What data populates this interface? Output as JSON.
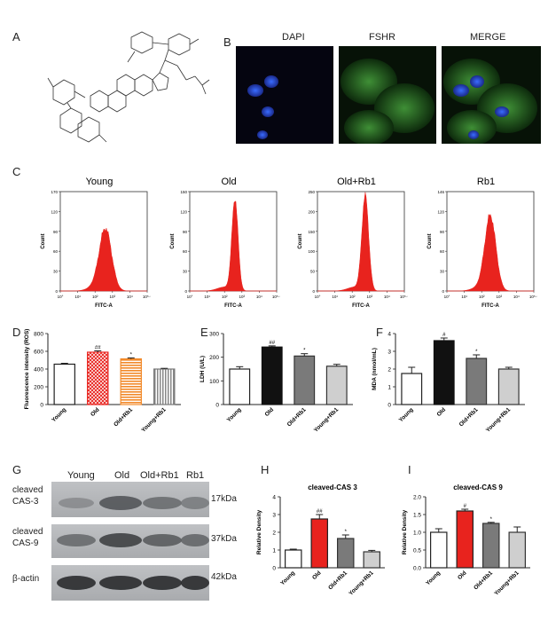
{
  "panels": {
    "A": "A",
    "B": "B",
    "C": "C",
    "D": "D",
    "E": "E",
    "F": "F",
    "G": "G",
    "H": "H",
    "I": "I"
  },
  "microscopy": {
    "labels": [
      "DAPI",
      "FSHR",
      "MERGE"
    ]
  },
  "flow": {
    "titles": [
      "Young",
      "Old",
      "Old+Rb1",
      "Rb1"
    ],
    "ylabel": "Count",
    "xlabel": "FITC-A",
    "xticks": [
      "10°",
      "10¹",
      "10²",
      "10³",
      "10⁴",
      "10⁵·⁴"
    ],
    "yticks": [
      [
        "0",
        "30",
        "60",
        "90",
        "120",
        "170"
      ],
      [
        "0",
        "30",
        "60",
        "90",
        "120",
        "150"
      ],
      [
        "0",
        "50",
        "100",
        "150",
        "200",
        "250"
      ],
      [
        "0",
        "30",
        "60",
        "90",
        "120",
        "146"
      ]
    ],
    "fill_color": "#e8231e"
  },
  "western": {
    "lanes": [
      "Young",
      "Old",
      "Old+Rb1",
      "Rb1"
    ],
    "rows": [
      {
        "label1": "cleaved",
        "label2": "CAS-3",
        "kda": "17kDa"
      },
      {
        "label1": "cleaved",
        "label2": "CAS-9",
        "kda": "37kDa"
      },
      {
        "label1": "β-actin",
        "label2": "",
        "kda": "42kDa"
      }
    ]
  },
  "chart_data": [
    {
      "panel": "D",
      "type": "bar",
      "title": "",
      "ylabel": "Fluorescence intensity (ROS)",
      "categories": [
        "Young",
        "Old",
        "Old+Rb1",
        "Young+Rb1"
      ],
      "values": [
        455,
        590,
        515,
        400
      ],
      "errors": [
        10,
        15,
        10,
        8
      ],
      "annotations": [
        "",
        "##",
        "*",
        ""
      ],
      "ylim": [
        0,
        800
      ],
      "yticks": [
        "0",
        "200",
        "400",
        "600",
        "800"
      ]
    },
    {
      "panel": "E",
      "type": "bar",
      "title": "",
      "ylabel": "LDH (U/L)",
      "categories": [
        "Young",
        "Old",
        "Old+Rb1",
        "Young+Rb1"
      ],
      "values": [
        150,
        243,
        205,
        162
      ],
      "errors": [
        10,
        5,
        10,
        8
      ],
      "annotations": [
        "",
        "##",
        "*",
        ""
      ],
      "ylim": [
        0,
        300
      ],
      "yticks": [
        "0",
        "100",
        "200",
        "300"
      ]
    },
    {
      "panel": "F",
      "type": "bar",
      "title": "",
      "ylabel": "MDA (nmol/mL)",
      "categories": [
        "Young",
        "Old",
        "Old+Rb1",
        "Young+Rb1"
      ],
      "values": [
        1.75,
        3.6,
        2.6,
        2.0
      ],
      "errors": [
        0.35,
        0.15,
        0.2,
        0.1
      ],
      "annotations": [
        "",
        "#",
        "*",
        ""
      ],
      "ylim": [
        0,
        4
      ],
      "yticks": [
        "0",
        "1",
        "2",
        "3",
        "4"
      ]
    },
    {
      "panel": "H",
      "type": "bar",
      "title": "cleaved-CAS 3",
      "ylabel": "Relative Density",
      "categories": [
        "Young",
        "Old",
        "Old+Rb1",
        "Young+Rb1"
      ],
      "values": [
        1.0,
        2.75,
        1.65,
        0.9
      ],
      "errors": [
        0.05,
        0.25,
        0.2,
        0.08
      ],
      "annotations": [
        "",
        "##",
        "*",
        ""
      ],
      "ylim": [
        0,
        4
      ],
      "yticks": [
        "0",
        "1",
        "2",
        "3",
        "4"
      ]
    },
    {
      "panel": "I",
      "type": "bar",
      "title": "cleaved-CAS 9",
      "ylabel": "Relative Density",
      "categories": [
        "Young",
        "Old",
        "Old+Rb1",
        "Young+Rb1"
      ],
      "values": [
        1.0,
        1.6,
        1.25,
        1.0
      ],
      "errors": [
        0.1,
        0.05,
        0.03,
        0.15
      ],
      "annotations": [
        "",
        "#",
        "*",
        ""
      ],
      "ylim": [
        0,
        2.0
      ],
      "yticks": [
        "0.0",
        "0.5",
        "1.0",
        "1.5",
        "2.0"
      ]
    }
  ]
}
